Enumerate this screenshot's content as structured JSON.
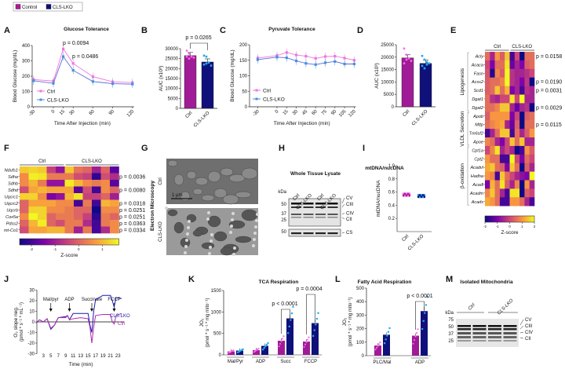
{
  "legend": {
    "items": [
      {
        "label": "Control",
        "color": "#b5179e"
      },
      {
        "label": "CLS-LKO",
        "color": "#0d0d80"
      }
    ]
  },
  "colors": {
    "ctrl_line": "#ee77dd",
    "cls_line": "#4a90e0",
    "ctrl_bar": "#a01c96",
    "cls_bar": "#10107a",
    "ctrl_dot": "#ff66ee",
    "cls_dot": "#22aaee"
  },
  "panel_letters": [
    "A",
    "B",
    "C",
    "D",
    "E",
    "F",
    "G",
    "H",
    "I",
    "J",
    "K",
    "L",
    "M"
  ],
  "chart_data": [
    {
      "id": "A",
      "type": "line",
      "title": "Glucose Tolerance",
      "xlabel": "Time After Injection (min)",
      "ylabel": "Blood Glucose (mg/dL)",
      "x": [
        -30,
        0,
        15,
        30,
        60,
        90,
        120
      ],
      "ylim": [
        0,
        400
      ],
      "yticks": [
        0,
        100,
        200,
        300,
        400
      ],
      "series": [
        {
          "name": "Ctrl",
          "values": [
            178,
            168,
            378,
            283,
            197,
            163,
            158
          ]
        },
        {
          "name": "CLS-LKO",
          "values": [
            170,
            153,
            328,
            238,
            165,
            151,
            148
          ]
        }
      ],
      "annotations": [
        "p = 0.0094",
        "p = 0.0486"
      ]
    },
    {
      "id": "B",
      "type": "bar",
      "ylabel": "AUC (x10³)",
      "categories": [
        "Ctrl",
        "CLS-LKO"
      ],
      "values": [
        26500,
        23300
      ],
      "ylim": [
        0,
        30000
      ],
      "yticks": [
        0,
        5000,
        10000,
        15000,
        20000,
        25000,
        30000
      ],
      "points": [
        [
          29000,
          27500,
          26000,
          25500,
          26000,
          25000
        ],
        [
          26500,
          26000,
          23000,
          21500,
          22000,
          22500
        ]
      ],
      "annotations": [
        "p = 0.0265"
      ]
    },
    {
      "id": "C",
      "type": "line",
      "title": "Pyruvate Tolerance",
      "xlabel": "Time After Injection (min)",
      "ylabel": "Blood Glucose (mg/dL)",
      "x": [
        -30,
        0,
        15,
        30,
        45,
        60,
        75,
        90,
        105,
        120
      ],
      "ylim": [
        0,
        200
      ],
      "yticks": [
        0,
        50,
        100,
        150,
        200
      ],
      "series": [
        {
          "name": "Ctrl",
          "values": [
            157,
            165,
            175,
            167,
            163,
            156,
            162,
            163,
            157,
            150
          ]
        },
        {
          "name": "CLS-LKO",
          "values": [
            152,
            160,
            158,
            148,
            140,
            136,
            142,
            146,
            138,
            138
          ]
        }
      ]
    },
    {
      "id": "D",
      "type": "bar",
      "ylabel": "AUC (x10³)",
      "categories": [
        "Ctrl",
        "CLS-LKO"
      ],
      "values": [
        19700,
        17500
      ],
      "ylim": [
        0,
        25000
      ],
      "yticks": [
        0,
        5000,
        10000,
        15000,
        20000,
        25000
      ],
      "points": [
        [
          23500,
          21000,
          19500,
          18500,
          17500,
          19000
        ],
        [
          20500,
          19000,
          18000,
          17500,
          16500,
          15500,
          17000
        ]
      ]
    },
    {
      "id": "E",
      "type": "heatmap",
      "groups": [
        "Ctrl",
        "CLS-LKO"
      ],
      "colorbar_label": "Z-score",
      "range": [
        -2,
        2
      ],
      "cbticks": [
        "-2",
        "-1",
        "0",
        "1",
        "2"
      ],
      "sections": [
        {
          "label": "Lipogenesis",
          "rows": 7
        },
        {
          "label": "VLDL Secretion",
          "rows": 4
        },
        {
          "label": "β-oxidation",
          "rows": 7
        }
      ],
      "rows": [
        "Acly",
        "Acaca",
        "Fasn",
        "Acss2",
        "Scd1",
        "Dgat1",
        "Dgat2",
        "Apob",
        "Mttp",
        "Tm6sf2",
        "Apoe",
        "Cpt1a",
        "Cpt2",
        "Acadvl",
        "Hadha",
        "Acadl",
        "Acadm",
        "Acads"
      ],
      "pvalues": [
        "p = 0.0158",
        "",
        "",
        "p = 0.0190",
        "p = 0.0031",
        "",
        "p = 0.0029",
        "",
        "p = 0.0115",
        "",
        "",
        "",
        "",
        "",
        "",
        "",
        "",
        ""
      ],
      "values": [
        [
          0.5,
          -0.5,
          1,
          0.3,
          1.5,
          -1.5,
          0,
          -2,
          0.5,
          0.5
        ],
        [
          0,
          -1,
          0.5,
          0.5,
          1.8,
          -1.2,
          -0.5,
          -1,
          0.3,
          0.5
        ],
        [
          0.2,
          -1.8,
          0.8,
          0.3,
          2,
          -0.3,
          -0.5,
          -0.5,
          -0.3,
          0
        ],
        [
          0.3,
          0.5,
          0.5,
          0.8,
          2,
          -0.3,
          -0.5,
          -1,
          -0.2,
          -2
        ],
        [
          0.3,
          0.5,
          1.5,
          0.5,
          1.3,
          -1,
          -0.5,
          -1.5,
          -0.3,
          -0.5
        ],
        [
          0.5,
          -0.3,
          -0.5,
          0,
          0,
          1.8,
          0,
          2,
          -0.5,
          -0.5
        ],
        [
          0.5,
          0.5,
          0.8,
          1.5,
          1.5,
          -0.5,
          -1.2,
          -0.5,
          -0.3,
          -2
        ],
        [
          0.3,
          1,
          1,
          1,
          1,
          -1,
          0,
          -2.5,
          0.3,
          0.5
        ],
        [
          0.5,
          0.8,
          1,
          1.2,
          -0.5,
          -1.2,
          0.3,
          -2.5,
          0.5,
          0.5
        ],
        [
          -1.5,
          -0.5,
          0.5,
          1.5,
          1.5,
          -1.5,
          0.5,
          -0.5,
          0.3,
          1
        ],
        [
          0.8,
          0.5,
          -0.5,
          -1,
          0,
          1.5,
          0.5,
          1.5,
          -0.5,
          -0.5
        ],
        [
          0,
          0.8,
          1.8,
          -0.5,
          0,
          -0.5,
          -2,
          -1.5,
          1,
          0.3
        ],
        [
          1,
          0.5,
          0.5,
          -1.5,
          -1.5,
          2,
          0,
          -1,
          0.5,
          0
        ],
        [
          1.2,
          1.5,
          0.5,
          0.3,
          -1,
          1.5,
          0.5,
          -2,
          0.3,
          -0.5
        ],
        [
          1,
          0.8,
          -1.5,
          1.5,
          0.5,
          0,
          -0.5,
          -0.8,
          -1,
          2
        ],
        [
          -1,
          1.3,
          0.5,
          1.8,
          0.3,
          -0.5,
          0.8,
          -2,
          1,
          -0.5
        ],
        [
          0.8,
          1.5,
          0.5,
          -0.5,
          -1.5,
          1.8,
          1.8,
          -2,
          0.3,
          0
        ],
        [
          1.2,
          1,
          0.5,
          -1.5,
          -1.5,
          1,
          1,
          0.5,
          -0.5,
          -1.5
        ]
      ]
    },
    {
      "id": "F",
      "type": "heatmap",
      "groups": [
        "Ctrl",
        "CLS-LKO"
      ],
      "colorbar_label": "Z-score",
      "range": [
        -2.5,
        1.7
      ],
      "cbticks": [
        "-2",
        "-1",
        "0",
        "1"
      ],
      "rows": [
        "Ndufs1",
        "Sdha",
        "Sdhb",
        "Sdhd",
        "Uqcrc1",
        "Uqcrc2",
        "Uqcrb",
        "Cox5a",
        "Pdss2",
        "mt-Co1"
      ],
      "pvalues": [
        "",
        "p = 0.0036",
        "",
        "p = 0.0080",
        "",
        "p = 0.0318",
        "p = 0.0251",
        "p = 0.0251",
        "p = 0.0363",
        "p = 0.0334"
      ],
      "values": [
        [
          1.2,
          1.3,
          1.2,
          -0.5,
          -1.2,
          1.2,
          0.2,
          0,
          -1,
          0,
          -1.8
        ],
        [
          0.5,
          1.6,
          1.5,
          0.3,
          0.3,
          0.3,
          -0.3,
          -0.5,
          -2.2,
          -0.3,
          -0.8
        ],
        [
          0.5,
          1,
          0.3,
          -1.2,
          -1.2,
          1.6,
          1,
          0.5,
          0.3,
          0.5,
          -1.8
        ],
        [
          -0.3,
          0.8,
          1,
          0.8,
          0.8,
          0.8,
          -1.8,
          -0.3,
          -2,
          0.5,
          0
        ],
        [
          1.3,
          1.3,
          0.5,
          -1.5,
          -1.2,
          1,
          1.5,
          -0.5,
          -0.5,
          0,
          -1
        ],
        [
          0,
          0.8,
          0.8,
          0.8,
          0.5,
          0.5,
          -2,
          0.3,
          -2,
          1,
          0.8
        ],
        [
          0,
          1.3,
          1.3,
          0.5,
          0.5,
          0.3,
          0,
          0,
          -2.5,
          0.5,
          0.5
        ],
        [
          0.5,
          1.7,
          1.3,
          0,
          0.3,
          0.3,
          0,
          -0.5,
          -2.2,
          0.3,
          0
        ],
        [
          0,
          1,
          1.6,
          0,
          -0.3,
          0.3,
          0.3,
          -0.8,
          -2,
          0.3,
          0.5
        ],
        [
          -0.3,
          0.8,
          0.8,
          1,
          1,
          0.3,
          -1,
          0.3,
          -2,
          -0.8,
          0.5
        ]
      ]
    },
    {
      "id": "I",
      "type": "scatter",
      "title": "mtDNA/nucDNA",
      "ylabel": "mtDNA/nucDNA",
      "categories": [
        "Ctrl",
        "CLS-LKO"
      ],
      "values": [
        0.56,
        0.54
      ],
      "ylim": [
        0,
        1.0
      ],
      "yticks": [
        "0.2",
        "0.4",
        "0.6",
        "0.8",
        "1.0"
      ]
    },
    {
      "id": "J",
      "type": "line",
      "xlabel": "Time (min)",
      "ylabel": "O₂ slope neg.",
      "ylabel2": "(pmol * s⁻¹ * mL⁻¹)",
      "ylim": [
        -30,
        30
      ],
      "yticks": [
        -30,
        -20,
        -10,
        0,
        10,
        20,
        30
      ],
      "xticks": [
        3,
        5,
        7,
        9,
        11,
        13,
        15,
        17,
        19,
        21,
        23
      ],
      "injections": [
        {
          "label": "Mal/pyr",
          "t": 5
        },
        {
          "label": "ADP",
          "t": 10
        },
        {
          "label": "Succinate",
          "t": 16
        },
        {
          "label": "FCCP",
          "t": 22
        }
      ],
      "series": [
        {
          "name": "CLS-LKO",
          "points": [
            [
              1,
              -1
            ],
            [
              2,
              2
            ],
            [
              3,
              0
            ],
            [
              4,
              3
            ],
            [
              5,
              -7
            ],
            [
              6,
              -3
            ],
            [
              7,
              4
            ],
            [
              9,
              5
            ],
            [
              9.5,
              6
            ],
            [
              10,
              2
            ],
            [
              11,
              8
            ],
            [
              13,
              8
            ],
            [
              15,
              8
            ],
            [
              15.5,
              -3
            ],
            [
              16,
              -10
            ],
            [
              16.5,
              10
            ],
            [
              17,
              21
            ],
            [
              19,
              25
            ],
            [
              21,
              25
            ],
            [
              21.5,
              20
            ],
            [
              22,
              14
            ],
            [
              22.5,
              23
            ],
            [
              24,
              22
            ]
          ]
        },
        {
          "name": "Ctrl",
          "points": [
            [
              1,
              -1
            ],
            [
              2,
              2
            ],
            [
              3,
              0
            ],
            [
              4,
              3
            ],
            [
              5,
              -6
            ],
            [
              6,
              -3
            ],
            [
              7,
              4
            ],
            [
              9,
              4
            ],
            [
              9.5,
              6
            ],
            [
              10,
              2
            ],
            [
              11,
              3
            ],
            [
              13,
              4
            ],
            [
              15,
              3
            ],
            [
              15.5,
              -5
            ],
            [
              16,
              -20
            ],
            [
              16.5,
              -5
            ],
            [
              17,
              6
            ],
            [
              19,
              7
            ],
            [
              21,
              7
            ],
            [
              21.5,
              0
            ],
            [
              22,
              -2
            ],
            [
              22.5,
              6
            ],
            [
              24,
              8
            ]
          ]
        }
      ]
    },
    {
      "id": "K",
      "type": "bar",
      "title": "TCA Respiration",
      "ylabel": "JO₂",
      "ylabel2": "(pmol * s⁻¹ * mg mito⁻¹)",
      "categories": [
        "Mal/Pyr",
        "ADP",
        "Succ",
        "FCCP"
      ],
      "ylim": [
        0,
        1500
      ],
      "yticks": [
        0,
        500,
        1000,
        1500
      ],
      "series": [
        {
          "name": "Ctrl",
          "values": [
            80,
            110,
            330,
            310
          ]
        },
        {
          "name": "CLS-LKO",
          "values": [
            100,
            210,
            850,
            740
          ]
        }
      ],
      "annotations": [
        "p < 0.0001",
        "p = 0.0004"
      ]
    },
    {
      "id": "L",
      "type": "bar",
      "title": "Fatty Acid Respiration",
      "ylabel": "JO₂",
      "ylabel2": "(pmol * s⁻¹ * mg mito⁻¹)",
      "categories": [
        "PLC/Mal",
        "ADP"
      ],
      "ylim": [
        0,
        500
      ],
      "yticks": [
        0,
        100,
        200,
        300,
        400,
        500
      ],
      "series": [
        {
          "name": "Ctrl",
          "values": [
            75,
            148
          ]
        },
        {
          "name": "CLS-LKO",
          "values": [
            155,
            330
          ]
        }
      ],
      "annotations": [
        "p < 0.0001"
      ]
    }
  ],
  "G": {
    "title": "Electron Microscopy",
    "rows": [
      "Ctrl",
      "CLS-LKO"
    ],
    "scale": "1 µm"
  },
  "H": {
    "title": "Whole Tissue Lysate",
    "lanes": [
      "Ctrl",
      "CLS-LKO",
      "Ctrl",
      "CLS-LKO"
    ],
    "kda_label": "kDa",
    "kda": [
      "50",
      "37",
      "25",
      "50"
    ],
    "bands": [
      "CV",
      "CIII",
      "CIV",
      "CII",
      "CS"
    ]
  },
  "M": {
    "title": "Isolated Mitochondria",
    "groups": [
      "Ctrl",
      "CLS-LKO"
    ],
    "kda_label": "kDa",
    "kda": [
      "75",
      "50",
      "37",
      "25"
    ],
    "bands": [
      "CV",
      "CIII",
      "CIV",
      "CII"
    ]
  }
}
